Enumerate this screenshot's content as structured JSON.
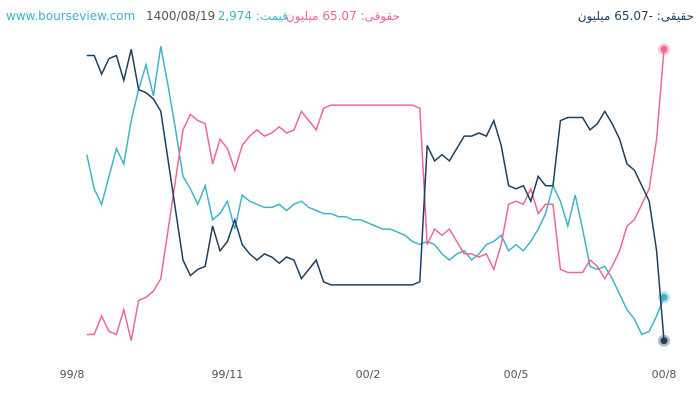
{
  "header": {
    "site": "www.bourseview.com",
    "date": "1400/08/19",
    "price": "قیمت: 2,974",
    "legal": "حقوقی: 65.07 میلیون",
    "real": "حقیقی: -65.07 میلیون"
  },
  "chart_data": {
    "type": "line",
    "categories": [
      "99/8",
      null,
      null,
      null,
      null,
      null,
      null,
      null,
      null,
      null,
      null,
      null,
      null,
      null,
      null,
      null,
      null,
      null,
      null,
      null,
      null,
      "99/11",
      null,
      null,
      null,
      null,
      null,
      null,
      null,
      null,
      null,
      null,
      null,
      null,
      null,
      null,
      null,
      null,
      null,
      null,
      "00/2",
      null,
      null,
      null,
      null,
      null,
      null,
      null,
      null,
      null,
      null,
      null,
      null,
      null,
      null,
      null,
      null,
      null,
      null,
      null,
      "00/5",
      null,
      null,
      null,
      null,
      null,
      null,
      null,
      null,
      null,
      null,
      null,
      null,
      null,
      null,
      null,
      null,
      null,
      null,
      null,
      "00/8"
    ],
    "ylim": [
      0,
      100
    ],
    "series": [
      {
        "color": "#41b3c6",
        "values": [
          null,
          null,
          63,
          52,
          47,
          56,
          65,
          60,
          74,
          84,
          92,
          82,
          98,
          85,
          71,
          56,
          52,
          47,
          53,
          42,
          44,
          48,
          39,
          50,
          48,
          47,
          46,
          46,
          47,
          45,
          47,
          48,
          46,
          45,
          44,
          44,
          43,
          43,
          42,
          42,
          41,
          40,
          39,
          39,
          38,
          37,
          35,
          34,
          35,
          34,
          31,
          29,
          31,
          32,
          29,
          31,
          34,
          35,
          37,
          32,
          34,
          32,
          35,
          39,
          44,
          53,
          48,
          40,
          50,
          39,
          27,
          26,
          27,
          23,
          18,
          13,
          10,
          5,
          6,
          11,
          17
        ]
      },
      {
        "color": "#ef6792",
        "values": [
          null,
          null,
          5,
          5,
          11,
          6,
          5,
          13,
          3,
          16,
          17,
          19,
          23,
          39,
          55,
          71,
          76,
          74,
          73,
          60,
          68,
          65,
          58,
          66,
          69,
          71,
          69,
          70,
          72,
          70,
          71,
          77,
          74,
          71,
          78,
          79,
          79,
          79,
          79,
          79,
          79,
          79,
          79,
          79,
          79,
          79,
          79,
          78,
          34,
          39,
          37,
          39,
          35,
          31,
          31,
          30,
          31,
          26,
          34,
          47,
          48,
          47,
          52,
          44,
          47,
          47,
          26,
          25,
          25,
          25,
          29,
          27,
          23,
          27,
          32,
          40,
          42,
          47,
          52,
          68,
          97
        ]
      },
      {
        "color": "#1d3f5f",
        "values": [
          null,
          null,
          95,
          95,
          89,
          94,
          95,
          87,
          97,
          84,
          83,
          81,
          77,
          61,
          45,
          29,
          24,
          26,
          27,
          40,
          32,
          35,
          42,
          34,
          31,
          29,
          31,
          30,
          28,
          30,
          29,
          23,
          26,
          29,
          22,
          21,
          21,
          21,
          21,
          21,
          21,
          21,
          21,
          21,
          21,
          21,
          21,
          22,
          66,
          61,
          63,
          61,
          65,
          69,
          69,
          70,
          69,
          74,
          66,
          53,
          52,
          53,
          48,
          56,
          53,
          53,
          74,
          75,
          75,
          75,
          71,
          73,
          77,
          73,
          68,
          60,
          58,
          53,
          48,
          32,
          3
        ]
      }
    ]
  }
}
